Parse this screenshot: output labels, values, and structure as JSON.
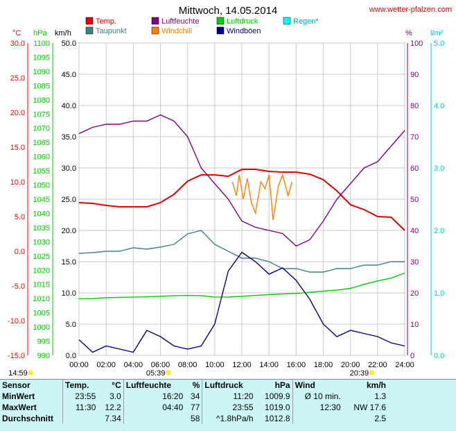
{
  "chart_data": {
    "type": "line",
    "title": "Mittwoch, 14.05.2014",
    "source": "www.wetter-pfalzen.com",
    "x_ticks": [
      "00:00",
      "02:00",
      "04:00",
      "06:00",
      "08:00",
      "10:00",
      "12:00",
      "14:00",
      "16:00",
      "18:00",
      "20:00",
      "22:00",
      "24:00"
    ],
    "xlim": [
      0,
      24
    ],
    "grid": true,
    "axes": {
      "temp": {
        "unit": "°C",
        "color": "#ff0000",
        "range": [
          -15,
          30
        ],
        "ticks": [
          "30.0",
          "25.0",
          "20.0",
          "15.0",
          "10.0",
          "5.0",
          "0.0",
          "-5.0",
          "-10.0",
          "-15.0"
        ]
      },
      "pressure": {
        "unit": "hPa",
        "color": "#00cc00",
        "range": [
          990,
          1100
        ],
        "ticks": [
          "1100",
          "1095",
          "1090",
          "1085",
          "1080",
          "1075",
          "1070",
          "1065",
          "1060",
          "1055",
          "1050",
          "1045",
          "1040",
          "1035",
          "1030",
          "1025",
          "1020",
          "1015",
          "1010",
          "1005",
          "1000",
          "995",
          "990"
        ]
      },
      "wind": {
        "unit": "km/h",
        "color": "#000000",
        "range": [
          0,
          50
        ],
        "ticks": [
          "50.0",
          "45.0",
          "40.0",
          "35.0",
          "30.0",
          "25.0",
          "20.0",
          "15.0",
          "10.0",
          "5.0",
          "0.0"
        ]
      },
      "humidity": {
        "unit": "%",
        "color": "#800080",
        "range": [
          0,
          100
        ],
        "ticks": [
          "100",
          "90",
          "80",
          "70",
          "60",
          "50",
          "40",
          "30",
          "20",
          "10",
          "0"
        ]
      },
      "rain": {
        "unit": "l/m²",
        "color": "#00cccc",
        "range": [
          0,
          5
        ],
        "ticks": [
          "5.0",
          "4.0",
          "3.0",
          "2.0",
          "1.0",
          "0.0"
        ]
      }
    },
    "legend": [
      {
        "name": "Temp.",
        "color": "#e00000"
      },
      {
        "name": "Taupunkt",
        "color": "#408080"
      },
      {
        "name": "Luftfeuchte",
        "color": "#800080"
      },
      {
        "name": "Windchill",
        "color": "#ff8000"
      },
      {
        "name": "Luftdruck",
        "color": "#00cc00"
      },
      {
        "name": "Windböen",
        "color": "#000080"
      },
      {
        "name": "Regen*",
        "color": "#00ffff"
      }
    ],
    "series": [
      {
        "name": "Temp.",
        "axis": "temp",
        "color": "#e00000",
        "x": [
          0,
          1,
          2,
          3,
          4,
          5,
          6,
          7,
          8,
          9,
          10,
          11,
          12,
          13,
          14,
          15,
          16,
          17,
          18,
          19,
          20,
          21,
          22,
          23,
          24
        ],
        "values": [
          7.0,
          6.9,
          6.6,
          6.4,
          6.4,
          6.4,
          7.0,
          8.2,
          10.1,
          11.0,
          11.0,
          10.8,
          11.8,
          11.8,
          11.5,
          11.4,
          11.4,
          11.1,
          10.3,
          8.7,
          6.7,
          6.0,
          5.0,
          4.9,
          3.0
        ]
      },
      {
        "name": "Taupunkt",
        "axis": "temp",
        "color": "#408080",
        "x": [
          0,
          1,
          2,
          3,
          4,
          5,
          6,
          7,
          8,
          9,
          10,
          11,
          12,
          13,
          14,
          15,
          16,
          17,
          18,
          19,
          20,
          21,
          22,
          23,
          24
        ],
        "values": [
          -0.3,
          -0.2,
          0.0,
          0.0,
          0.5,
          0.3,
          0.6,
          1.0,
          2.5,
          3.0,
          1.0,
          0.0,
          -1.0,
          -1.0,
          -1.5,
          -2.5,
          -2.5,
          -3.0,
          -3.0,
          -2.5,
          -2.5,
          -2.0,
          -2.0,
          -1.5,
          -1.5
        ]
      },
      {
        "name": "Windchill",
        "axis": "temp",
        "color": "#ff8000",
        "x": [
          11.3,
          11.6,
          11.8,
          12.1,
          12.4,
          12.7,
          13.0,
          13.4,
          13.7,
          14.0,
          14.3,
          14.7,
          15.0,
          15.4,
          15.7
        ],
        "values": [
          10.0,
          8.0,
          11.0,
          7.5,
          10.5,
          7.0,
          5.5,
          10.0,
          9.0,
          11.0,
          4.5,
          9.5,
          11.0,
          8.0,
          10.0
        ]
      },
      {
        "name": "Luftfeuchte",
        "axis": "humidity",
        "color": "#800080",
        "x": [
          0,
          1,
          2,
          3,
          4,
          5,
          6,
          7,
          8,
          9,
          10,
          11,
          12,
          13,
          14,
          15,
          16,
          17,
          18,
          19,
          20,
          21,
          22,
          23,
          24
        ],
        "values": [
          71,
          73,
          74,
          74,
          75,
          75,
          77,
          75,
          70,
          60,
          55,
          50,
          43,
          41,
          40,
          39,
          35,
          37,
          43,
          50,
          55,
          60,
          62,
          67,
          72
        ]
      },
      {
        "name": "Luftdruck",
        "axis": "pressure",
        "color": "#00cc00",
        "x": [
          0,
          1,
          2,
          3,
          4,
          5,
          6,
          7,
          8,
          9,
          10,
          11,
          12,
          13,
          14,
          15,
          16,
          17,
          18,
          19,
          20,
          21,
          22,
          23,
          24
        ],
        "values": [
          1009.9,
          1010.0,
          1010.3,
          1010.4,
          1010.5,
          1010.6,
          1010.8,
          1011.0,
          1011.1,
          1011.0,
          1010.5,
          1010.5,
          1010.8,
          1011.1,
          1011.4,
          1011.6,
          1011.8,
          1012.2,
          1012.6,
          1013.0,
          1013.6,
          1015.0,
          1016.2,
          1017.2,
          1019.0
        ]
      },
      {
        "name": "Windböen",
        "axis": "wind",
        "color": "#000080",
        "x": [
          0,
          1,
          2,
          3,
          4,
          5,
          6,
          7,
          8,
          9,
          10,
          11,
          12,
          13,
          14,
          15,
          16,
          17,
          18,
          19,
          20,
          21,
          22,
          23,
          24
        ],
        "values": [
          2.5,
          0.5,
          1.5,
          1.0,
          0.5,
          4.0,
          3.0,
          1.5,
          1.0,
          1.5,
          5.0,
          13.5,
          16.5,
          15.0,
          13.0,
          14.0,
          12.0,
          9.0,
          5.0,
          3.0,
          4.0,
          3.5,
          3.0,
          2.0,
          1.5
        ]
      }
    ],
    "sun_markers": [
      {
        "label": "14:59",
        "x": 0.0
      },
      {
        "label": "05:39",
        "x": 5.65
      },
      {
        "label": "20:39",
        "x": 20.65
      }
    ]
  },
  "labels": {
    "temp_unit": "°C",
    "pressure_unit": "hPa",
    "wind_unit": "km/h",
    "humidity_unit": "%",
    "rain_unit": "l/m²"
  },
  "stats": {
    "header": [
      "Sensor",
      "Temp.",
      "°C",
      "Luftfeuchte",
      "%",
      "Luftdruck",
      "hPa",
      "Wind",
      "km/h"
    ],
    "rows": [
      {
        "label": "MinWert",
        "t_time": "23:55",
        "t_val": "3.0",
        "h_time": "16:20",
        "h_val": "34",
        "p_time": "11:20",
        "p_val": "1009.9",
        "w_time": "Ø 10 min.",
        "w_val": "1.3"
      },
      {
        "label": "MaxWert",
        "t_time": "11:30",
        "t_val": "12.2",
        "h_time": "04:40",
        "h_val": "77",
        "p_time": "23:55",
        "p_val": "1019.0",
        "w_time": "12:30",
        "w_val": "NW 17.6"
      },
      {
        "label": "Durchschnitt",
        "t_time": "",
        "t_val": "7.34",
        "h_time": "",
        "h_val": "58",
        "p_time": "^1.8hPa/h",
        "p_val": "1012.8",
        "w_time": "",
        "w_val": "2.5"
      }
    ]
  }
}
